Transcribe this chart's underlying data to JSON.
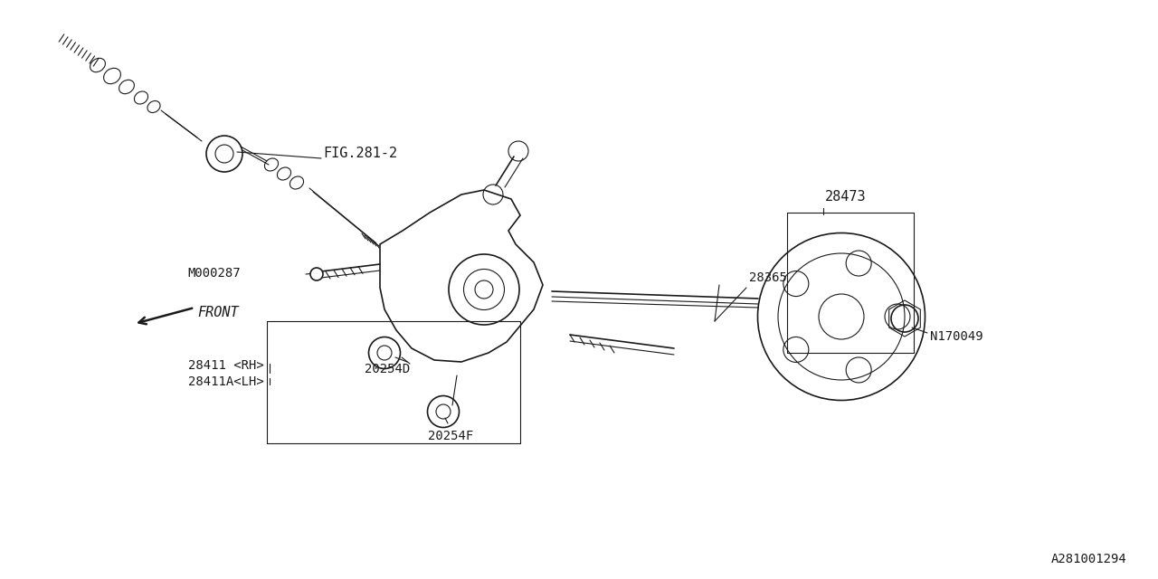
{
  "bg_color": "#ffffff",
  "line_color": "#1a1a1a",
  "part_id": "A281001294",
  "labels": {
    "FIG281_2": "FIG.281-2",
    "FRONT": "FRONT",
    "M000287": "M000287",
    "28473": "28473",
    "28365": "28365",
    "28411RH": "28411 <RH>",
    "28411ALH": "28411A<LH>",
    "20254D": "20254D",
    "20254F": "20254F",
    "N170049": "N170049"
  }
}
